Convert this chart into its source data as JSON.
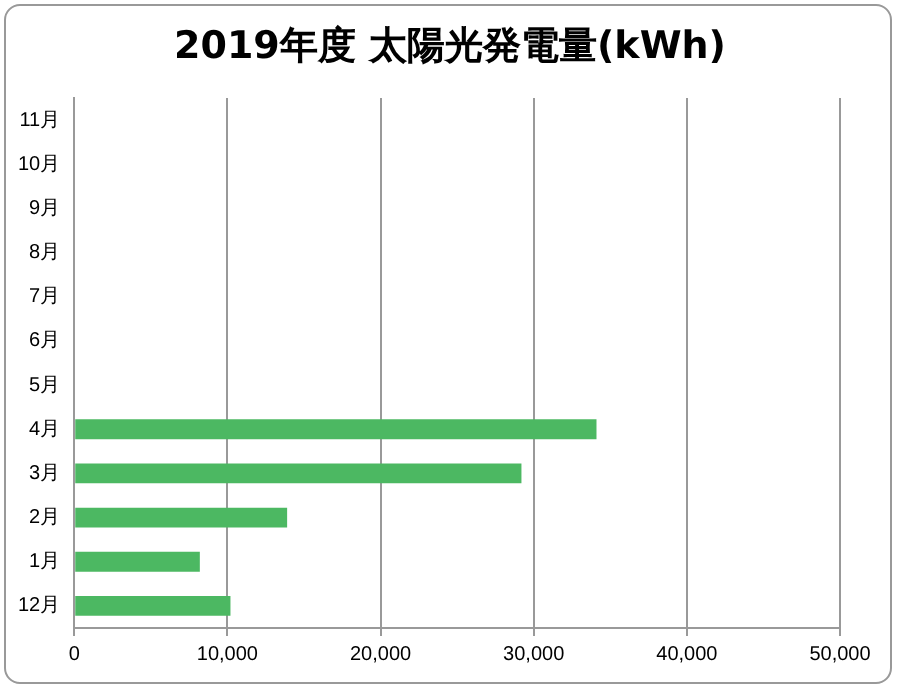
{
  "chart_data": {
    "type": "bar",
    "orientation": "horizontal",
    "title": "2019年度 太陽光発電量(kWh)",
    "categories": [
      "11月",
      "10月",
      "9月",
      "8月",
      "7月",
      "6月",
      "5月",
      "4月",
      "3月",
      "2月",
      "1月",
      "12月"
    ],
    "values": [
      null,
      null,
      null,
      null,
      null,
      null,
      null,
      34100,
      29200,
      13900,
      8200,
      10200
    ],
    "color": "#4cb862",
    "xlim": [
      0,
      50000
    ],
    "xticks": [
      0,
      {
        "value": 10000,
        "label": "10,000"
      },
      {
        "value": 20000,
        "label": "20,000"
      },
      {
        "value": 30000,
        "label": "30,000"
      },
      {
        "value": 40000,
        "label": "40,000"
      },
      {
        "value": 50000,
        "label": "50,000"
      }
    ],
    "grid": "x",
    "legend": false
  }
}
